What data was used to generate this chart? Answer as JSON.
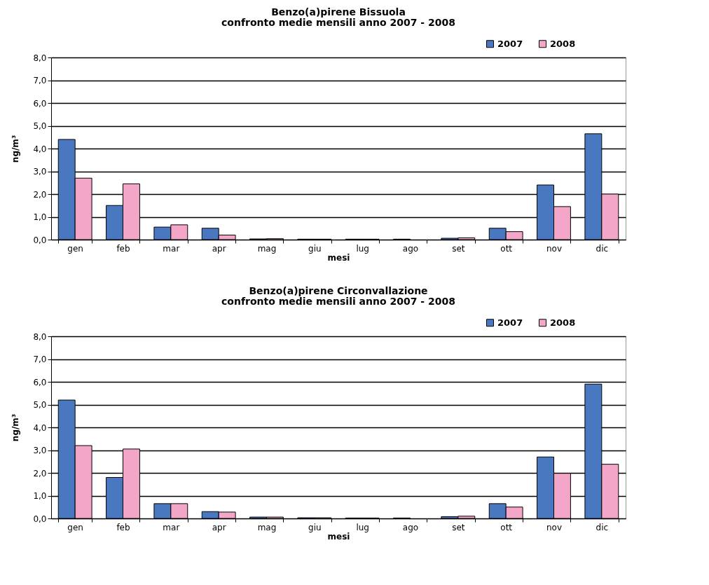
{
  "chart_data": [
    {
      "type": "bar",
      "title": "Benzo(a)pirene Bissuola",
      "subtitle": "confronto medie mensili anno 2007 - 2008",
      "xlabel": "mesi",
      "ylabel": "ng/m³",
      "categories": [
        "gen",
        "feb",
        "mar",
        "apr",
        "mag",
        "giu",
        "lug",
        "ago",
        "set",
        "ott",
        "nov",
        "dic"
      ],
      "series": [
        {
          "name": "2007",
          "color": "#4a78c0",
          "values": [
            4.4,
            1.5,
            0.55,
            0.5,
            0.03,
            0.02,
            0.02,
            0.02,
            0.06,
            0.5,
            2.4,
            4.65
          ]
        },
        {
          "name": "2008",
          "color": "#f4a6c8",
          "values": [
            2.7,
            2.45,
            0.65,
            0.2,
            0.04,
            0.02,
            0.02,
            null,
            0.08,
            0.35,
            1.45,
            2.0
          ]
        }
      ],
      "ylim": [
        0,
        8
      ],
      "yticks": [
        {
          "value": 0,
          "label": "0,0"
        },
        {
          "value": 1,
          "label": "1,0"
        },
        {
          "value": 2,
          "label": "2,0"
        },
        {
          "value": 3,
          "label": "3,0"
        },
        {
          "value": 4,
          "label": "4,0"
        },
        {
          "value": 5,
          "label": "5,0"
        },
        {
          "value": 6,
          "label": "6,0"
        },
        {
          "value": 7,
          "label": "7,0"
        },
        {
          "value": 8,
          "label": "8,0"
        }
      ],
      "grid": "y",
      "legend": "top right"
    },
    {
      "type": "bar",
      "title": "Benzo(a)pirene Circonvallazione",
      "subtitle": "confronto medie mensili anno 2007 - 2008",
      "xlabel": "mesi",
      "ylabel": "ng/m³",
      "categories": [
        "gen",
        "feb",
        "mar",
        "apr",
        "mag",
        "giu",
        "lug",
        "ago",
        "set",
        "ott",
        "nov",
        "dic"
      ],
      "series": [
        {
          "name": "2007",
          "color": "#4a78c0",
          "values": [
            5.2,
            1.8,
            0.65,
            0.3,
            0.06,
            0.03,
            0.02,
            0.02,
            0.08,
            0.65,
            2.7,
            5.9
          ]
        },
        {
          "name": "2008",
          "color": "#f4a6c8",
          "values": [
            3.2,
            3.05,
            0.65,
            0.28,
            0.06,
            0.03,
            0.02,
            null,
            0.1,
            0.5,
            1.98,
            2.38
          ]
        }
      ],
      "ylim": [
        0,
        8
      ],
      "yticks": [
        {
          "value": 0,
          "label": "0,0"
        },
        {
          "value": 1,
          "label": "1,0"
        },
        {
          "value": 2,
          "label": "2,0"
        },
        {
          "value": 3,
          "label": "3,0"
        },
        {
          "value": 4,
          "label": "4,0"
        },
        {
          "value": 5,
          "label": "5,0"
        },
        {
          "value": 6,
          "label": "6,0"
        },
        {
          "value": 7,
          "label": "7,0"
        },
        {
          "value": 8,
          "label": "8,0"
        }
      ],
      "grid": "y",
      "legend": "top right"
    }
  ]
}
